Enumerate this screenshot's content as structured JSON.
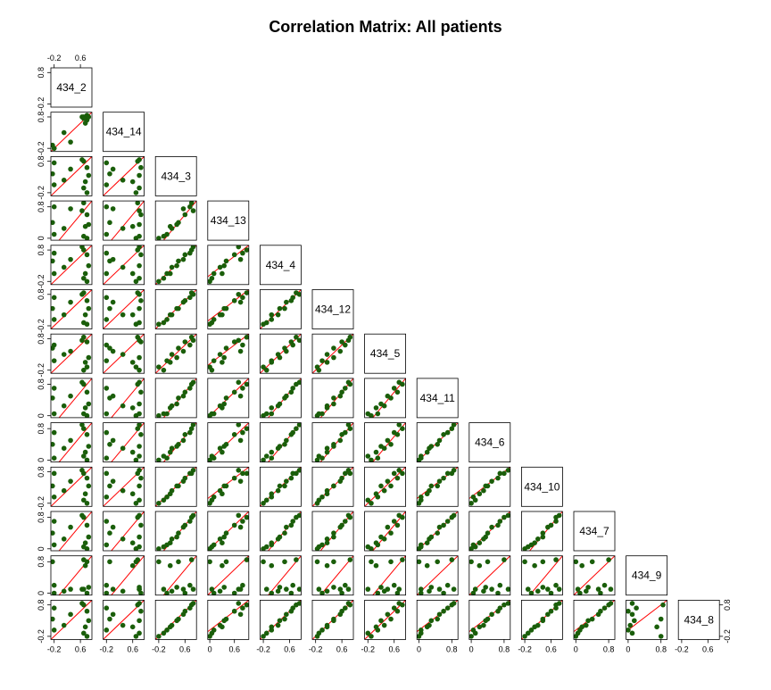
{
  "chart_data": {
    "type": "scatter-matrix",
    "title": "Correlation Matrix: All patients",
    "color": "#1a5e0a",
    "line_color": "#ff0000",
    "variables": [
      {
        "name": "434_2",
        "lim": [
          -0.3,
          0.95
        ],
        "xticks": [
          -0.2,
          0.6
        ],
        "yticks": [
          -0.2,
          0.8
        ],
        "values": [
          0.8,
          0.7,
          -0.2,
          0.75,
          0.1,
          0.85,
          -0.25,
          0.3,
          0.8,
          -0.2,
          0.7,
          0.65
        ]
      },
      {
        "name": "434_14",
        "lim": [
          -0.3,
          0.95
        ],
        "xticks": [
          -0.2,
          0.6
        ],
        "yticks": [
          -0.2,
          0.8
        ],
        "values": [
          0.7,
          0.8,
          -0.2,
          0.6,
          0.3,
          0.8,
          -0.1,
          0.0,
          0.85,
          -0.2,
          0.75,
          0.8
        ]
      },
      {
        "name": "434_3",
        "lim": [
          -0.3,
          0.95
        ],
        "xticks": [
          -0.2,
          0.6
        ],
        "yticks": [
          -0.2,
          0.8
        ],
        "values": [
          -0.2,
          -0.05,
          0.05,
          0.15,
          0.2,
          0.35,
          0.4,
          0.55,
          0.6,
          0.75,
          0.8,
          0.85
        ]
      },
      {
        "name": "434_13",
        "lim": [
          -0.05,
          0.95
        ],
        "xticks": [
          0.0,
          0.6
        ],
        "yticks": [
          0.0,
          0.8
        ],
        "values": [
          0.0,
          0.05,
          0.1,
          0.3,
          0.25,
          0.35,
          0.4,
          0.75,
          0.6,
          0.8,
          0.9,
          0.7
        ]
      },
      {
        "name": "434_4",
        "lim": [
          -0.3,
          0.95
        ],
        "xticks": [
          -0.2,
          0.6
        ],
        "yticks": [
          -0.2,
          0.8
        ],
        "values": [
          -0.2,
          -0.1,
          0.05,
          0.05,
          0.25,
          0.3,
          0.45,
          0.5,
          0.65,
          0.7,
          0.8,
          0.9
        ]
      },
      {
        "name": "434_12",
        "lim": [
          -0.3,
          0.95
        ],
        "xticks": [
          -0.2,
          0.6
        ],
        "yticks": [
          -0.2,
          0.8
        ],
        "values": [
          -0.15,
          -0.1,
          0.0,
          0.15,
          0.15,
          0.35,
          0.35,
          0.55,
          0.6,
          0.7,
          0.85,
          0.8
        ]
      },
      {
        "name": "434_5",
        "lim": [
          -0.3,
          0.95
        ],
        "xticks": [
          -0.2,
          0.6
        ],
        "yticks": [
          -0.2,
          0.8
        ],
        "values": [
          -0.1,
          -0.2,
          0.1,
          0.05,
          0.3,
          0.2,
          0.5,
          0.4,
          0.7,
          0.6,
          0.85,
          0.75
        ]
      },
      {
        "name": "434_11",
        "lim": [
          -0.05,
          0.95
        ],
        "xticks": [
          0.0,
          0.8
        ],
        "yticks": [
          0.0,
          0.8
        ],
        "values": [
          0.0,
          0.05,
          0.05,
          0.2,
          0.25,
          0.3,
          0.45,
          0.5,
          0.6,
          0.7,
          0.8,
          0.85
        ]
      },
      {
        "name": "434_6",
        "lim": [
          -0.05,
          0.95
        ],
        "xticks": [
          0.0,
          0.8
        ],
        "yticks": [
          0.0,
          0.8
        ],
        "values": [
          0.0,
          0.1,
          0.05,
          0.2,
          0.3,
          0.35,
          0.4,
          0.5,
          0.65,
          0.7,
          0.8,
          0.9
        ]
      },
      {
        "name": "434_10",
        "lim": [
          -0.3,
          0.95
        ],
        "xticks": [
          -0.2,
          0.6
        ],
        "yticks": [
          -0.2,
          0.8
        ],
        "values": [
          -0.2,
          -0.1,
          0.0,
          0.1,
          0.2,
          0.35,
          0.35,
          0.5,
          0.6,
          0.75,
          0.75,
          0.85
        ]
      },
      {
        "name": "434_7",
        "lim": [
          -0.05,
          0.95
        ],
        "xticks": [
          0.0,
          0.8
        ],
        "yticks": [
          0.0,
          0.8
        ],
        "values": [
          0.0,
          0.05,
          0.1,
          0.15,
          0.25,
          0.3,
          0.4,
          0.55,
          0.6,
          0.7,
          0.8,
          0.85
        ]
      },
      {
        "name": "434_9",
        "lim": [
          -0.05,
          0.95
        ],
        "xticks": [
          0.0,
          0.8
        ],
        "yticks": [
          0.0,
          0.8
        ],
        "values": [
          0.8,
          0.1,
          0.0,
          0.7,
          0.05,
          0.15,
          0.8,
          0.1,
          0.0,
          0.2,
          0.85,
          0.1
        ]
      },
      {
        "name": "434_8",
        "lim": [
          -0.3,
          0.95
        ],
        "xticks": [
          -0.2,
          0.6
        ],
        "yticks": [
          -0.2,
          0.8
        ],
        "values": [
          -0.2,
          -0.1,
          0.0,
          0.1,
          0.15,
          0.3,
          0.35,
          0.5,
          0.6,
          0.7,
          0.8,
          0.85
        ]
      }
    ]
  }
}
